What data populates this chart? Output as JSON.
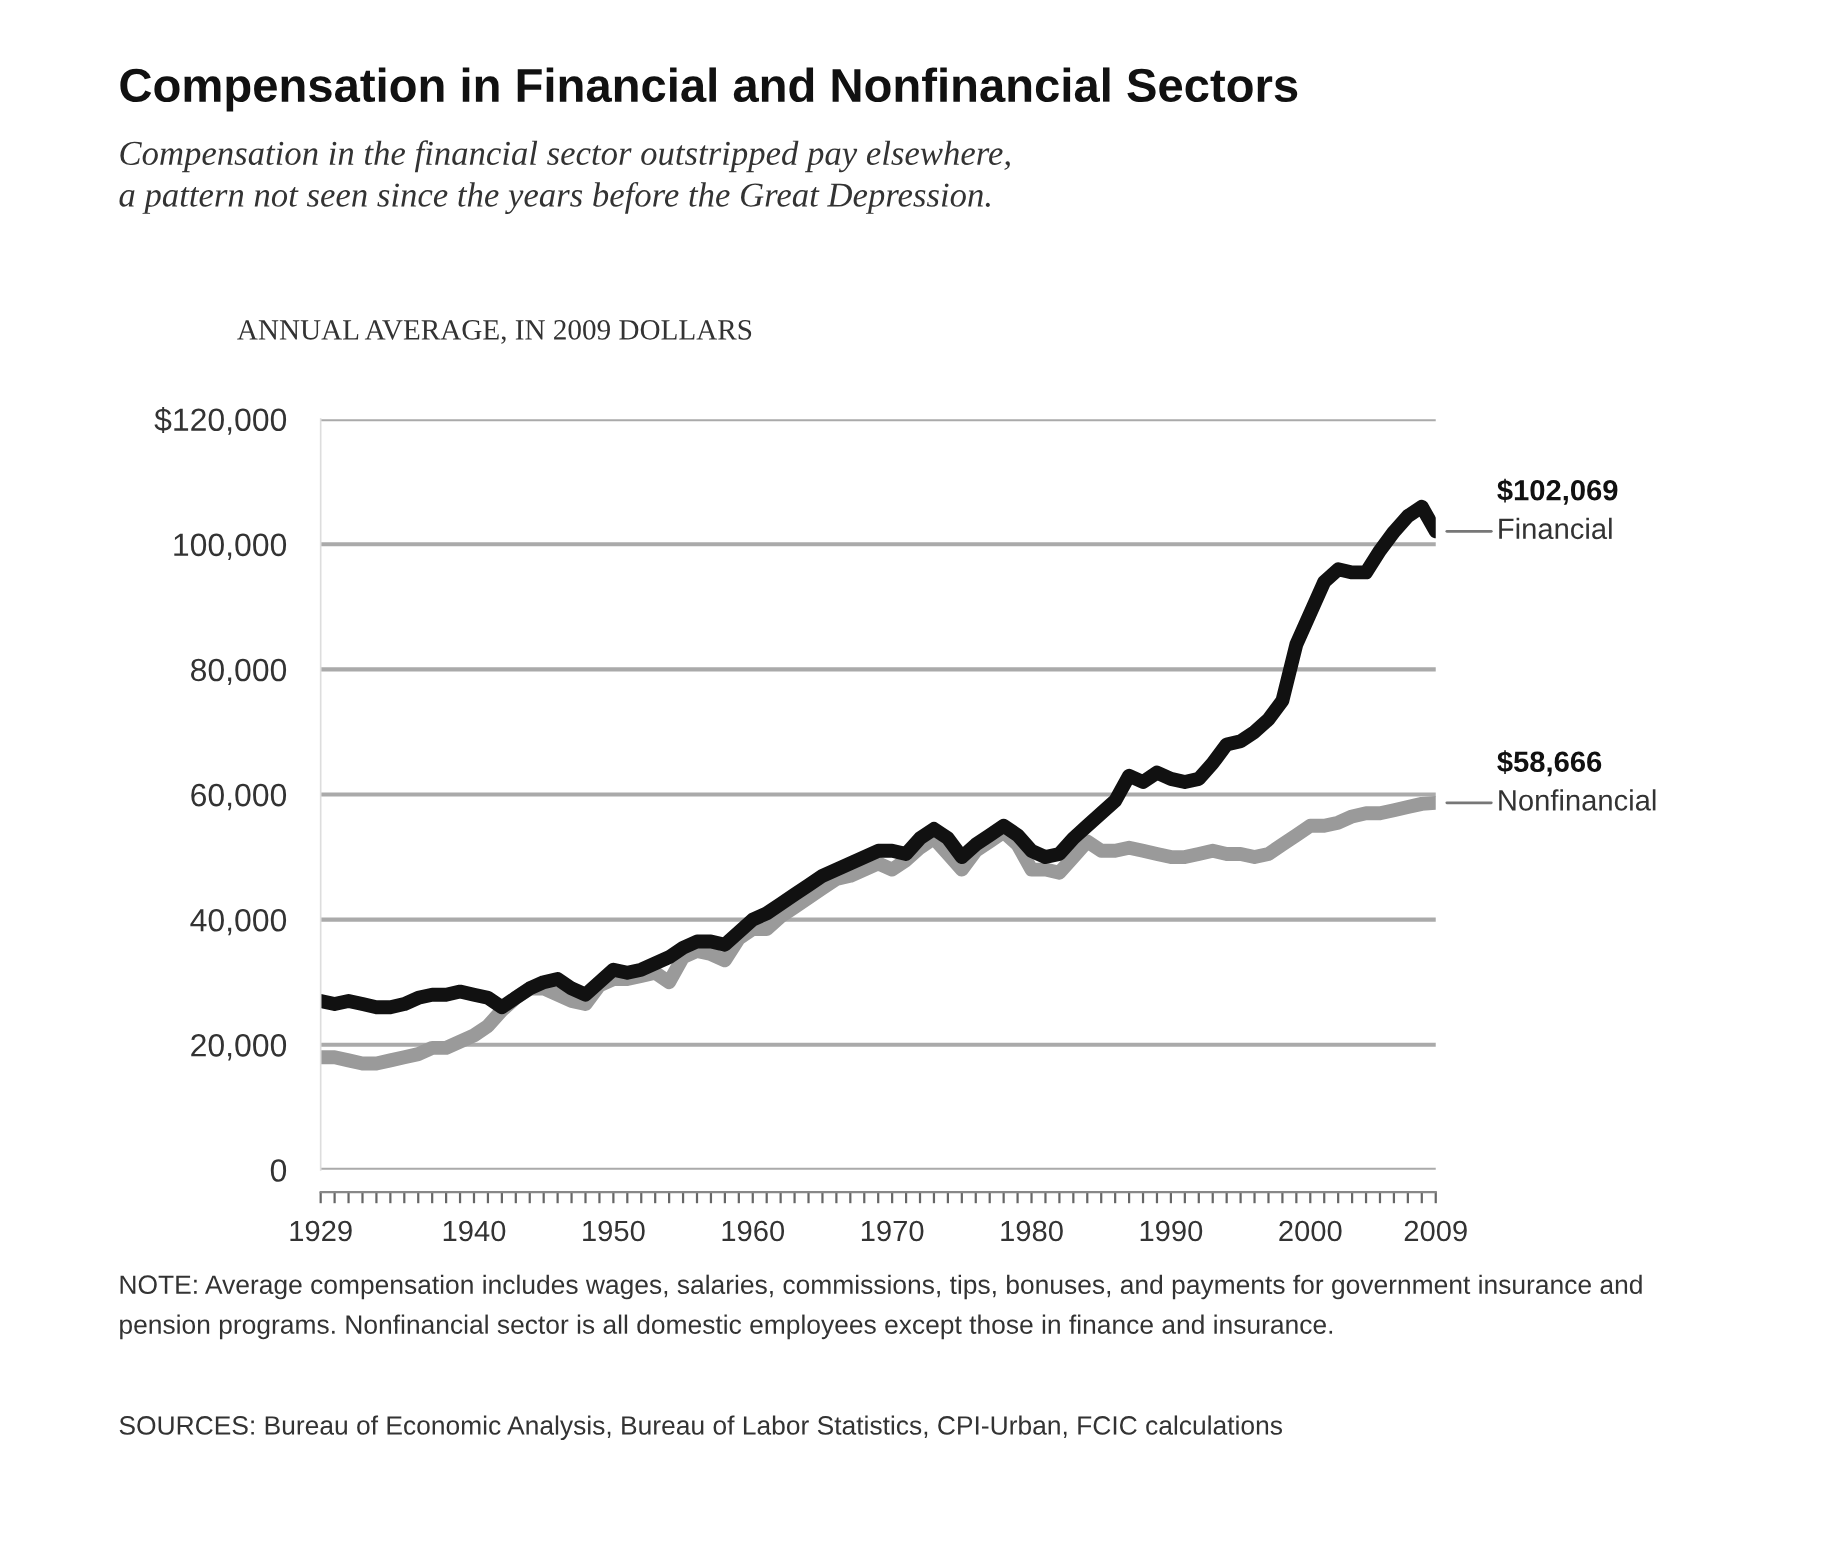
{
  "chart_data": {
    "type": "line",
    "title": "Compensation in Financial and Nonfinancial Sectors",
    "subtitle": "Compensation in the financial sector outstripped pay elsewhere,\na pattern not seen since the years before the Great Depression.",
    "ylabel": "ANNUAL AVERAGE, IN 2009 DOLLARS",
    "x": [
      1929,
      1930,
      1931,
      1932,
      1933,
      1934,
      1935,
      1936,
      1937,
      1938,
      1939,
      1940,
      1941,
      1942,
      1943,
      1944,
      1945,
      1946,
      1947,
      1948,
      1949,
      1950,
      1951,
      1952,
      1953,
      1954,
      1955,
      1956,
      1957,
      1958,
      1959,
      1960,
      1961,
      1962,
      1963,
      1964,
      1965,
      1966,
      1967,
      1968,
      1969,
      1970,
      1971,
      1972,
      1973,
      1974,
      1975,
      1976,
      1977,
      1978,
      1979,
      1980,
      1981,
      1982,
      1983,
      1984,
      1985,
      1986,
      1987,
      1988,
      1989,
      1990,
      1991,
      1992,
      1993,
      1994,
      1995,
      1996,
      1997,
      1998,
      1999,
      2000,
      2001,
      2002,
      2003,
      2004,
      2005,
      2006,
      2007,
      2008,
      2009
    ],
    "series": [
      {
        "name": "Financial",
        "color": "#111111",
        "values": [
          27000,
          26500,
          27000,
          26500,
          26000,
          26000,
          26500,
          27500,
          28000,
          28000,
          28500,
          28000,
          27500,
          26000,
          27500,
          29000,
          30000,
          30500,
          29000,
          28000,
          30000,
          32000,
          31500,
          32000,
          33000,
          34000,
          35500,
          36500,
          36500,
          36000,
          38000,
          40000,
          41000,
          42500,
          44000,
          45500,
          47000,
          48000,
          49000,
          50000,
          51000,
          51000,
          50500,
          53000,
          54500,
          53000,
          50000,
          52000,
          53500,
          55000,
          53500,
          51000,
          50000,
          50500,
          53000,
          55000,
          57000,
          59000,
          63000,
          62000,
          63500,
          62500,
          62000,
          62500,
          65000,
          68000,
          68500,
          70000,
          72000,
          75000,
          84000,
          89000,
          94000,
          96000,
          95500,
          95500,
          99000,
          102000,
          104500,
          106000,
          102069
        ],
        "value_labels": [
          null,
          null,
          null,
          null,
          null,
          null,
          null,
          null,
          null,
          null,
          null,
          null,
          null,
          null,
          null,
          null,
          null,
          null,
          null,
          null,
          null,
          null,
          null,
          null,
          null,
          null,
          null,
          null,
          null,
          null,
          null,
          null,
          null,
          null,
          null,
          null,
          null,
          null,
          null,
          null,
          null,
          null,
          null,
          null,
          null,
          null,
          null,
          null,
          null,
          null,
          null,
          null,
          null,
          null,
          null,
          null,
          null,
          null,
          null,
          null,
          null,
          null,
          null,
          null,
          null,
          null,
          null,
          null,
          null,
          null,
          null,
          null,
          null,
          null,
          null,
          null,
          null,
          null,
          null,
          null,
          "$102,069"
        ]
      },
      {
        "name": "Nonfinancial",
        "color": "#9a9a9a",
        "values": [
          18000,
          18000,
          17500,
          17000,
          17000,
          17500,
          18000,
          18500,
          19500,
          19500,
          20500,
          21500,
          23000,
          25500,
          27500,
          29000,
          29000,
          28000,
          27000,
          26500,
          29500,
          30500,
          30500,
          31000,
          31500,
          30000,
          34000,
          35000,
          34500,
          33500,
          37000,
          38500,
          38500,
          40500,
          42000,
          43500,
          45000,
          46500,
          47000,
          48000,
          49000,
          48000,
          49500,
          51500,
          53000,
          50500,
          48000,
          51000,
          52500,
          54000,
          52000,
          48000,
          48000,
          47500,
          50000,
          52500,
          51000,
          51000,
          51500,
          51000,
          50500,
          50000,
          50000,
          50500,
          51000,
          50500,
          50500,
          50000,
          50500,
          52000,
          53500,
          55000,
          55000,
          55500,
          56500,
          57000,
          57000,
          57500,
          58000,
          58500,
          58666
        ],
        "value_labels": [
          null,
          null,
          null,
          null,
          null,
          null,
          null,
          null,
          null,
          null,
          null,
          null,
          null,
          null,
          null,
          null,
          null,
          null,
          null,
          null,
          null,
          null,
          null,
          null,
          null,
          null,
          null,
          null,
          null,
          null,
          null,
          null,
          null,
          null,
          null,
          null,
          null,
          null,
          null,
          null,
          null,
          null,
          null,
          null,
          null,
          null,
          null,
          null,
          null,
          null,
          null,
          null,
          null,
          null,
          null,
          null,
          null,
          null,
          null,
          null,
          null,
          null,
          null,
          null,
          null,
          null,
          null,
          null,
          null,
          null,
          null,
          null,
          null,
          null,
          null,
          null,
          null,
          null,
          null,
          null,
          "$58,666"
        ]
      }
    ],
    "xlim": [
      1929,
      2009
    ],
    "xticks": [
      1929,
      {
        "value": 1930,
        "label": null
      },
      {
        "value": 1931,
        "label": null
      },
      {
        "value": 1932,
        "label": null
      },
      {
        "value": 1933,
        "label": null
      },
      {
        "value": 1934,
        "label": null
      },
      {
        "value": 1935,
        "label": null
      },
      {
        "value": 1936,
        "label": null
      },
      {
        "value": 1937,
        "label": null
      },
      {
        "value": 1938,
        "label": null
      },
      {
        "value": 1939,
        "label": null
      },
      1940,
      {
        "value": 1941,
        "label": null
      },
      {
        "value": 1942,
        "label": null
      },
      {
        "value": 1943,
        "label": null
      },
      {
        "value": 1944,
        "label": null
      },
      {
        "value": 1945,
        "label": null
      },
      {
        "value": 1946,
        "label": null
      },
      {
        "value": 1947,
        "label": null
      },
      {
        "value": 1948,
        "label": null
      },
      {
        "value": 1949,
        "label": null
      },
      1950,
      {
        "value": 1951,
        "label": null
      },
      {
        "value": 1952,
        "label": null
      },
      {
        "value": 1953,
        "label": null
      },
      {
        "value": 1954,
        "label": null
      },
      {
        "value": 1955,
        "label": null
      },
      {
        "value": 1956,
        "label": null
      },
      {
        "value": 1957,
        "label": null
      },
      {
        "value": 1958,
        "label": null
      },
      {
        "value": 1959,
        "label": null
      },
      1960,
      {
        "value": 1961,
        "label": null
      },
      {
        "value": 1962,
        "label": null
      },
      {
        "value": 1963,
        "label": null
      },
      {
        "value": 1964,
        "label": null
      },
      {
        "value": 1965,
        "label": null
      },
      {
        "value": 1966,
        "label": null
      },
      {
        "value": 1967,
        "label": null
      },
      {
        "value": 1968,
        "label": null
      },
      {
        "value": 1969,
        "label": null
      },
      1970,
      {
        "value": 1971,
        "label": null
      },
      {
        "value": 1972,
        "label": null
      },
      {
        "value": 1973,
        "label": null
      },
      {
        "value": 1974,
        "label": null
      },
      {
        "value": 1975,
        "label": null
      },
      {
        "value": 1976,
        "label": null
      },
      {
        "value": 1977,
        "label": null
      },
      {
        "value": 1978,
        "label": null
      },
      {
        "value": 1979,
        "label": null
      },
      1980,
      {
        "value": 1981,
        "label": null
      },
      {
        "value": 1982,
        "label": null
      },
      {
        "value": 1983,
        "label": null
      },
      {
        "value": 1984,
        "label": null
      },
      {
        "value": 1985,
        "label": null
      },
      {
        "value": 1986,
        "label": null
      },
      {
        "value": 1987,
        "label": null
      },
      {
        "value": 1988,
        "label": null
      },
      {
        "value": 1989,
        "label": null
      },
      1990,
      {
        "value": 1991,
        "label": null
      },
      {
        "value": 1992,
        "label": null
      },
      {
        "value": 1993,
        "label": null
      },
      {
        "value": 1994,
        "label": null
      },
      {
        "value": 1995,
        "label": null
      },
      {
        "value": 1996,
        "label": null
      },
      {
        "value": 1997,
        "label": null
      },
      {
        "value": 1998,
        "label": null
      },
      {
        "value": 1999,
        "label": null
      },
      2000,
      {
        "value": 2001,
        "label": null
      },
      {
        "value": 2002,
        "label": null
      },
      {
        "value": 2003,
        "label": null
      },
      {
        "value": 2004,
        "label": null
      },
      {
        "value": 2005,
        "label": null
      },
      {
        "value": 2006,
        "label": null
      },
      {
        "value": 2007,
        "label": null
      },
      {
        "value": 2008,
        "label": null
      },
      2009
    ],
    "ylim": [
      0,
      120000
    ],
    "yticks": [
      0,
      {
        "value": 20000,
        "label": "20,000"
      },
      {
        "value": 40000,
        "label": "40,000"
      },
      {
        "value": 60000,
        "label": "60,000"
      },
      {
        "value": 80000,
        "label": "80,000"
      },
      {
        "value": 100000,
        "label": "100,000"
      },
      {
        "value": 120000,
        "label": "$120,000"
      }
    ],
    "grid": "y",
    "legend": false,
    "marker": "none",
    "line_style": "solid",
    "annotations": [
      "NOTE: Average compensation includes wages, salaries, commissions, tips, bonuses, and payments for government insurance and pension programs. Nonfinancial sector is all domestic employees except those in finance and insurance.",
      "SOURCES: Bureau of Economic Analysis, Bureau of Labor Statistics, CPI-Urban, FCIC calculations"
    ]
  }
}
